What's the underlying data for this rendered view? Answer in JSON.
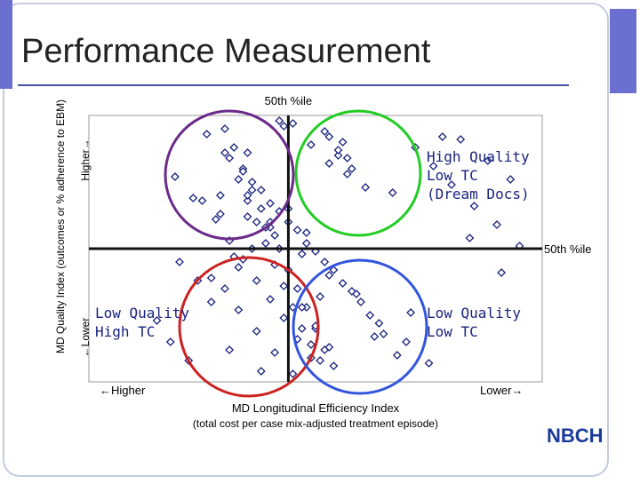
{
  "header": {
    "title": "Performance Measurement"
  },
  "chart_data": {
    "type": "scatter",
    "y_label": "MD Quality Index (outcomes or % adherence to EBM)",
    "y_high": "Higher→",
    "y_low": "←Lower",
    "x_label": "MD Longitudinal Efficiency Index",
    "x_sublabel": "(total cost per case mix-adjusted treatment episode)",
    "x_high": "←Higher",
    "x_low": "Lower→",
    "median_x_label": "50th %ile",
    "median_y_label": "50th %ile",
    "xlim": [
      0,
      100
    ],
    "ylim": [
      0,
      100
    ],
    "median_x": 44,
    "median_y": 50,
    "color": "#1a237e",
    "quadrants": [
      {
        "lines": [
          "High Quality",
          "Low TC",
          "(Dream Docs)"
        ],
        "color": "#22cc22"
      },
      {
        "lines": [
          "Low Quality",
          "High TC"
        ],
        "color": "#cc2222"
      },
      {
        "lines": [
          "Low Quality",
          "Low TC"
        ],
        "color": "#3355dd"
      }
    ],
    "x": [
      30,
      32,
      34,
      36,
      38,
      40,
      42,
      44,
      46,
      48,
      50,
      52,
      54,
      56,
      31,
      33,
      35,
      37,
      39,
      41,
      43,
      45,
      47,
      49,
      51,
      53,
      55,
      57,
      29,
      35,
      41,
      47,
      53,
      59,
      62,
      65,
      68,
      72,
      76,
      80,
      85,
      90,
      95,
      20,
      24,
      27,
      15,
      18,
      22,
      26,
      30,
      34,
      38,
      42,
      46,
      50,
      54,
      58,
      33,
      37,
      41,
      45,
      49,
      53,
      36,
      40,
      44,
      48,
      52,
      56,
      60,
      64,
      70,
      75,
      82,
      88,
      93,
      25,
      28,
      31,
      34,
      37,
      40,
      43,
      46,
      49,
      52,
      55,
      58,
      61,
      44,
      39,
      36,
      33,
      30,
      47,
      50,
      53,
      43,
      38,
      35,
      32,
      29,
      27,
      48,
      51,
      57,
      63,
      67,
      71,
      78,
      84,
      91,
      23,
      19,
      45,
      42,
      40,
      35,
      31
    ],
    "y": [
      95,
      88,
      80,
      72,
      65,
      58,
      50,
      42,
      35,
      28,
      20,
      12,
      6,
      90,
      84,
      76,
      68,
      60,
      52,
      44,
      36,
      28,
      20,
      14,
      8,
      92,
      85,
      78,
      70,
      62,
      55,
      48,
      40,
      33,
      25,
      18,
      10,
      88,
      81,
      74,
      66,
      59,
      51,
      45,
      38,
      30,
      23,
      15,
      8,
      93,
      86,
      79,
      72,
      64,
      57,
      49,
      42,
      34,
      27,
      19,
      11,
      97,
      89,
      82,
      75,
      67,
      60,
      52,
      45,
      37,
      30,
      22,
      15,
      7,
      91,
      83,
      76,
      68,
      61,
      53,
      46,
      38,
      31,
      24,
      16,
      9,
      94,
      87,
      80,
      73,
      65,
      58,
      50,
      43,
      35,
      28,
      21,
      13,
      96,
      4,
      70,
      47,
      63,
      39,
      56,
      32,
      84,
      17,
      71,
      26,
      92,
      54,
      41,
      69,
      77,
      3,
      98,
      60,
      86,
      12
    ]
  },
  "footer": {
    "logo": "NBCH"
  }
}
